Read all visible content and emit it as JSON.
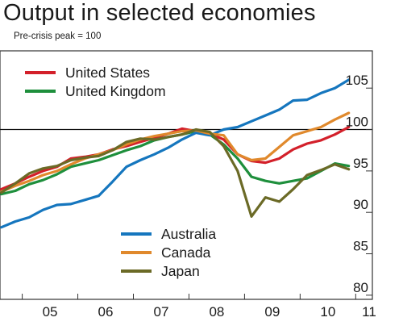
{
  "chart_data": {
    "type": "line",
    "title": "Output in selected economies",
    "subtitle": "Pre-crisis peak = 100",
    "xlabel": "",
    "ylabel": "",
    "x_ticks": [
      "05",
      "06",
      "07",
      "08",
      "09",
      "10",
      "11"
    ],
    "x_range": [
      2004.6,
      2011.3
    ],
    "y_ticks": [
      "80",
      "85",
      "90",
      "95",
      "100",
      "105"
    ],
    "ylim": [
      79.5,
      109.5
    ],
    "reference_line": 100,
    "grid": false,
    "legend_placement": [
      "top-left",
      "bottom-center"
    ],
    "series": [
      {
        "name": "United States",
        "color": "#d3202a",
        "legend_group": "top",
        "x": [
          2004.625,
          2004.875,
          2005.125,
          2005.375,
          2005.625,
          2005.875,
          2006.125,
          2006.375,
          2006.625,
          2006.875,
          2007.125,
          2007.375,
          2007.625,
          2007.875,
          2008.125,
          2008.375,
          2008.625,
          2008.875,
          2009.125,
          2009.375,
          2009.625,
          2009.875,
          2010.125,
          2010.375,
          2010.625,
          2010.875
        ],
        "values": [
          92.8,
          93.5,
          94.3,
          95.0,
          95.5,
          96.5,
          96.7,
          97.0,
          97.6,
          98.0,
          98.5,
          99.0,
          99.5,
          100.1,
          99.8,
          99.5,
          98.8,
          97.0,
          96.2,
          96.0,
          96.5,
          97.6,
          98.3,
          98.7,
          99.4,
          100.3
        ]
      },
      {
        "name": "United Kingdom",
        "color": "#1e8f3c",
        "legend_group": "top",
        "x": [
          2004.625,
          2004.875,
          2005.125,
          2005.375,
          2005.625,
          2005.875,
          2006.125,
          2006.375,
          2006.625,
          2006.875,
          2007.125,
          2007.375,
          2007.625,
          2007.875,
          2008.125,
          2008.375,
          2008.625,
          2008.875,
          2009.125,
          2009.375,
          2009.625,
          2009.875,
          2010.125,
          2010.375,
          2010.625,
          2010.875
        ],
        "values": [
          92.2,
          92.6,
          93.4,
          93.9,
          94.6,
          95.5,
          95.9,
          96.3,
          96.9,
          97.5,
          98.0,
          98.7,
          99.1,
          99.4,
          99.8,
          99.4,
          98.2,
          96.5,
          94.3,
          93.8,
          93.5,
          93.8,
          94.1,
          95.0,
          95.9,
          95.6
        ]
      },
      {
        "name": "Australia",
        "color": "#1576be",
        "legend_group": "bottom",
        "x": [
          2004.625,
          2004.875,
          2005.125,
          2005.375,
          2005.625,
          2005.875,
          2006.125,
          2006.375,
          2006.625,
          2006.875,
          2007.125,
          2007.375,
          2007.625,
          2007.875,
          2008.125,
          2008.375,
          2008.625,
          2008.875,
          2009.125,
          2009.375,
          2009.625,
          2009.875,
          2010.125,
          2010.375,
          2010.625,
          2010.875
        ],
        "values": [
          88.2,
          88.9,
          89.4,
          90.3,
          90.9,
          91.0,
          91.5,
          92.0,
          93.7,
          95.5,
          96.3,
          97.0,
          97.8,
          98.8,
          99.6,
          99.3,
          100.0,
          100.3,
          101.0,
          101.7,
          102.4,
          103.5,
          103.6,
          104.4,
          105.0,
          106.0
        ]
      },
      {
        "name": "Canada",
        "color": "#e0892c",
        "legend_group": "bottom",
        "x": [
          2004.625,
          2004.875,
          2005.125,
          2005.375,
          2005.625,
          2005.875,
          2006.125,
          2006.375,
          2006.625,
          2006.875,
          2007.125,
          2007.375,
          2007.625,
          2007.875,
          2008.125,
          2008.375,
          2008.625,
          2008.875,
          2009.125,
          2009.375,
          2009.625,
          2009.875,
          2010.125,
          2010.375,
          2010.625,
          2010.875
        ],
        "values": [
          92.5,
          93.2,
          93.8,
          94.5,
          95.0,
          95.8,
          96.5,
          97.0,
          97.5,
          98.2,
          98.8,
          99.2,
          99.5,
          99.8,
          99.9,
          99.5,
          99.3,
          97.0,
          96.3,
          96.5,
          97.9,
          99.3,
          99.8,
          100.3,
          101.2,
          102.0
        ]
      },
      {
        "name": "Japan",
        "color": "#6b6a26",
        "legend_group": "bottom",
        "x": [
          2004.625,
          2004.875,
          2005.125,
          2005.375,
          2005.625,
          2005.875,
          2006.125,
          2006.375,
          2006.625,
          2006.875,
          2007.125,
          2007.375,
          2007.625,
          2007.875,
          2008.125,
          2008.375,
          2008.625,
          2008.875,
          2009.125,
          2009.375,
          2009.625,
          2009.875,
          2010.125,
          2010.375,
          2010.625,
          2010.875
        ],
        "values": [
          92.4,
          93.5,
          94.7,
          95.3,
          95.6,
          96.3,
          96.6,
          96.8,
          97.5,
          98.5,
          98.9,
          98.8,
          99.1,
          99.4,
          100.0,
          99.7,
          98.0,
          95.0,
          89.5,
          91.8,
          91.3,
          92.8,
          94.5,
          95.1,
          95.8,
          95.2
        ]
      }
    ]
  }
}
